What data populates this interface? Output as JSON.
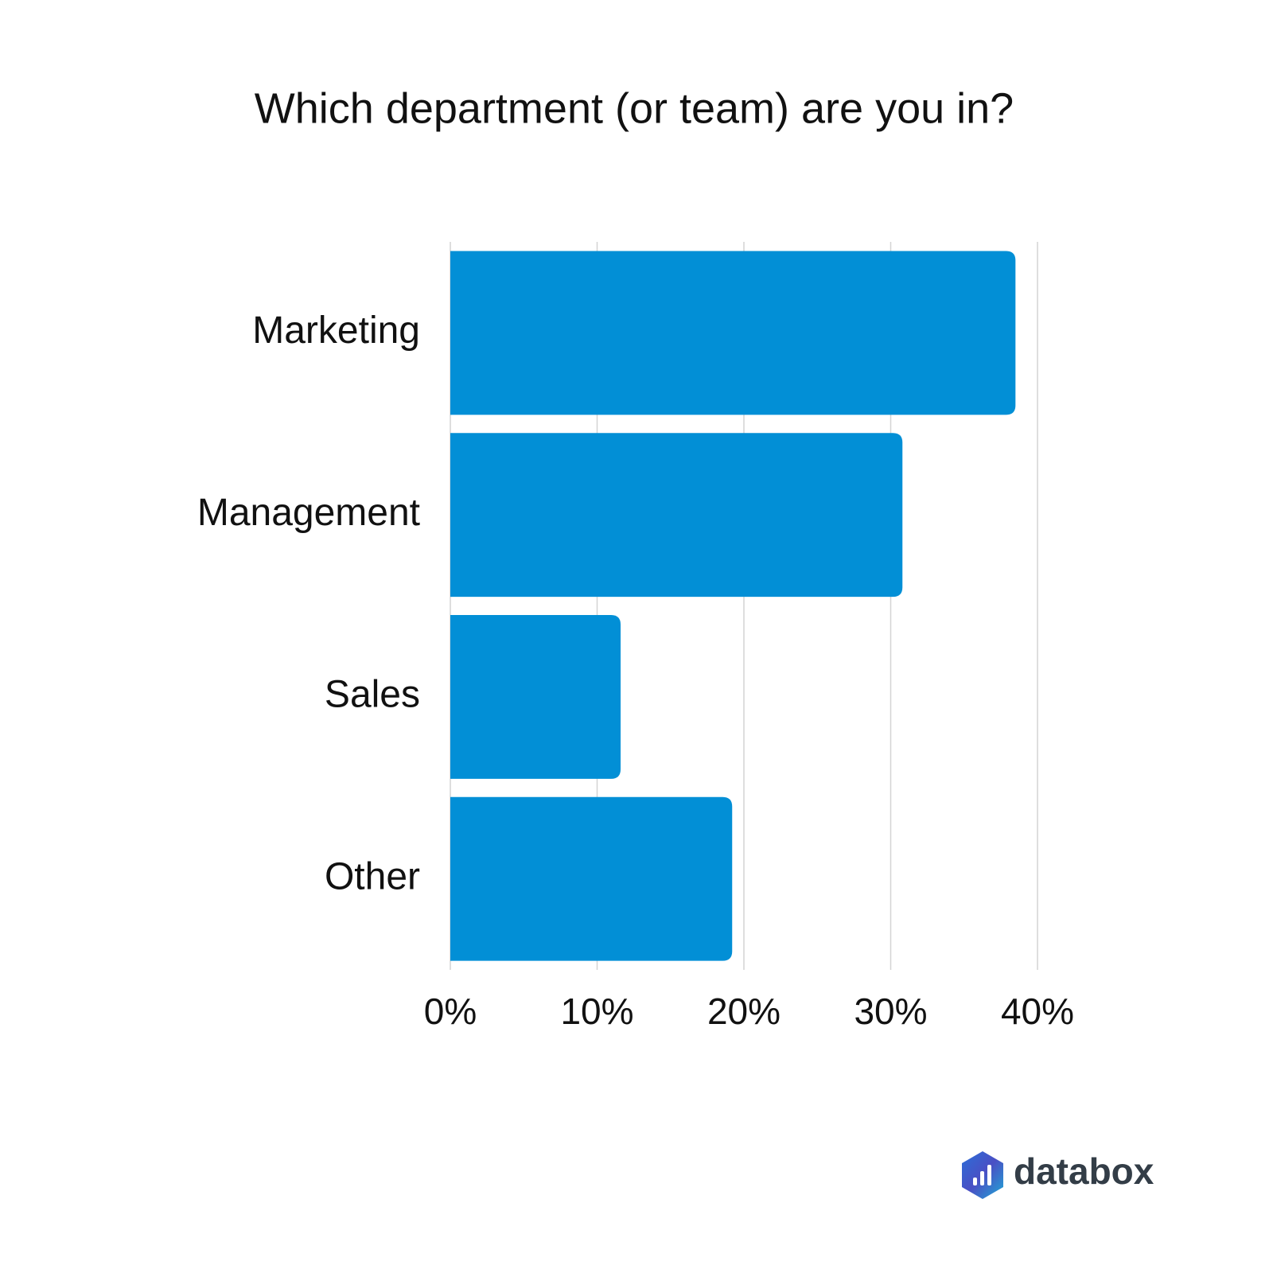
{
  "chart_data": {
    "type": "bar",
    "orientation": "horizontal",
    "title": "Which department (or team) are you in?",
    "categories": [
      "Marketing",
      "Management",
      "Sales",
      "Other"
    ],
    "values": [
      38.5,
      30.8,
      11.6,
      19.2
    ],
    "color": "#028fd6",
    "xlim": [
      0,
      40
    ],
    "xticks": [
      {
        "value": 0,
        "label": "0%"
      },
      {
        "value": 10,
        "label": "10%"
      },
      {
        "value": 20,
        "label": "20%"
      },
      {
        "value": 30,
        "label": "30%"
      },
      {
        "value": 40,
        "label": "40%"
      }
    ],
    "grid": true
  },
  "logo": {
    "text": "databox"
  }
}
